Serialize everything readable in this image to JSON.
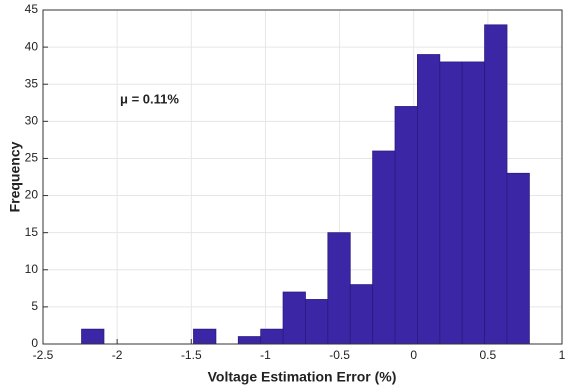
{
  "chart_data": {
    "type": "histogram",
    "xlabel": "Voltage Estimation Error (%)",
    "ylabel": "Frequency",
    "annotation": "μ = 0.11%",
    "bins": [
      -2.24,
      -2.089,
      -1.938,
      -1.787,
      -1.636,
      -1.485,
      -1.334,
      -1.183,
      -1.032,
      -0.881,
      -0.73,
      -0.579,
      -0.428,
      -0.277,
      -0.126,
      0.025,
      0.176,
      0.327,
      0.478,
      0.629,
      0.78
    ],
    "values": [
      2,
      0,
      0,
      0,
      0,
      2,
      0,
      1,
      2,
      7,
      6,
      15,
      8,
      26,
      32,
      39,
      38,
      38,
      43,
      23
    ],
    "color": "#3b27a5",
    "xlim": [
      -2.5,
      1
    ],
    "xticks": [
      -2.5,
      -2,
      -1.5,
      -1,
      -0.5,
      0,
      0.5,
      1
    ],
    "ylim": [
      0,
      45
    ],
    "yticks": [
      0,
      5,
      10,
      15,
      20,
      25,
      30,
      35,
      40,
      45
    ],
    "grid": true
  }
}
